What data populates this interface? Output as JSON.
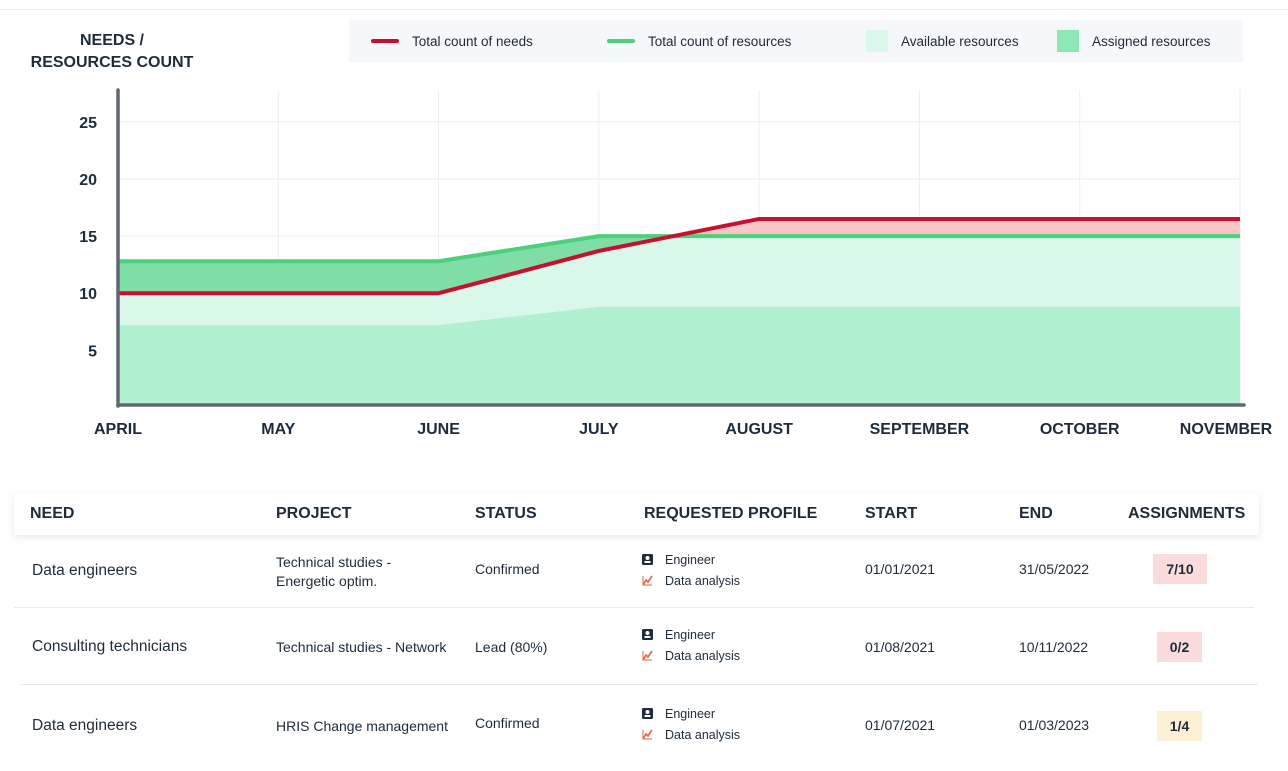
{
  "chart_data": {
    "type": "area",
    "ylabel": "NEEDS / RESOURCES COUNT",
    "ylim": [
      0,
      27
    ],
    "y_ticks": [
      5,
      10,
      15,
      20,
      25
    ],
    "x": [
      "APRIL",
      "MAY",
      "JUNE",
      "JULY",
      "AUGUST",
      "SEPTEMBER",
      "OCTOBER",
      "NOVEMBER"
    ],
    "series": [
      {
        "name": "Total count of needs",
        "kind": "line",
        "color": "#c8102e",
        "values": [
          10,
          10,
          10,
          13.7,
          16.5,
          16.5,
          16.5,
          16.5
        ]
      },
      {
        "name": "Total count of resources",
        "kind": "line",
        "color": "#4cd07d",
        "values": [
          12.8,
          12.8,
          12.8,
          15,
          15,
          15,
          15,
          15
        ]
      },
      {
        "name": "Available resources",
        "kind": "area",
        "color": "#d9f7ea",
        "values": [
          7.2,
          7.2,
          7.2,
          8.8,
          8.8,
          8.8,
          8.8,
          8.8
        ]
      },
      {
        "name": "Assigned resources",
        "kind": "area",
        "color": "#8ee8b6"
      }
    ],
    "grid": true,
    "legend": "top"
  },
  "table": {
    "headers": [
      "NEED",
      "PROJECT",
      "STATUS",
      "REQUESTED PROFILE",
      "START",
      "END",
      "ASSIGNMENTS"
    ],
    "rows": [
      {
        "need": "Data engineers",
        "project_line1": "Technical studies -",
        "project_line2": "Energetic optim.",
        "status": "Confirmed",
        "profile": "Engineer",
        "skill": "Data analysis",
        "start": "01/01/2021",
        "end": "31/05/2022",
        "assignments": "7/10",
        "badge_color": "#fbdcdc"
      },
      {
        "need": "Consulting technicians",
        "project_line1": "Technical studies - Network",
        "project_line2": "",
        "status": "Lead (80%)",
        "profile": "Engineer",
        "skill": "Data analysis",
        "start": "01/08/2021",
        "end": "10/11/2022",
        "assignments": "0/2",
        "badge_color": "#fbdcdc"
      },
      {
        "need": "Data engineers",
        "project_line1": "HRIS Change management",
        "project_line2": "",
        "status": "Confirmed",
        "profile": "Engineer",
        "skill": "Data analysis",
        "start": "01/07/2021",
        "end": "01/03/2023",
        "assignments": "1/4",
        "badge_color": "#fdf0d5"
      }
    ]
  },
  "icons": {
    "profile": "person-badge-icon",
    "skill": "data-analysis-icon"
  }
}
